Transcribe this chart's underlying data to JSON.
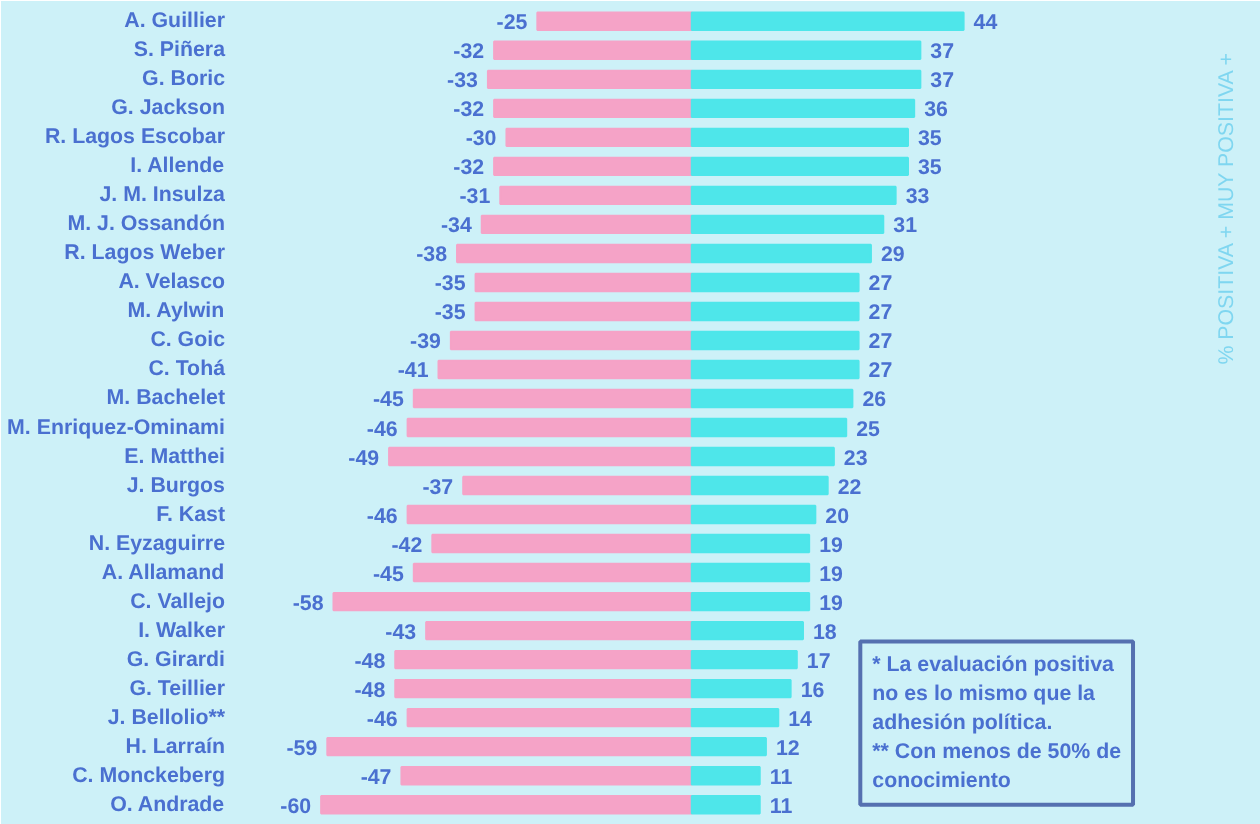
{
  "chart_data": {
    "type": "bar",
    "orientation": "horizontal",
    "categories": [
      "A. Guillier",
      "S. Piñera",
      "G. Boric",
      "G. Jackson",
      "R. Lagos Escobar",
      "I. Allende",
      "J. M. Insulza",
      "M. J. Ossandón",
      "R. Lagos Weber",
      "A. Velasco",
      "M. Aylwin",
      "C. Goic",
      "C. Tohá",
      "M. Bachelet",
      "M. Enriquez-Ominami",
      "E. Matthei",
      "J. Burgos",
      "F. Kast",
      "N. Eyzaguirre",
      "A. Allamand",
      "C. Vallejo",
      "I. Walker",
      "G. Girardi",
      "G. Teillier",
      "J. Bellolio**",
      "H. Larraín",
      "C. Monckeberg",
      "O. Andrade"
    ],
    "series": [
      {
        "color": "#f5a3c7",
        "values": [
          -25,
          -32,
          -33,
          -32,
          -30,
          -32,
          -31,
          -34,
          -38,
          -35,
          -35,
          -39,
          -41,
          -45,
          -46,
          -49,
          -37,
          -46,
          -42,
          -45,
          -58,
          -43,
          -48,
          -48,
          -46,
          -59,
          -47,
          -60
        ]
      },
      {
        "color": "#4ee6ea",
        "values": [
          44,
          37,
          37,
          36,
          35,
          35,
          33,
          31,
          29,
          27,
          27,
          27,
          27,
          26,
          25,
          23,
          22,
          20,
          19,
          19,
          19,
          18,
          17,
          16,
          14,
          12,
          11,
          11
        ]
      }
    ],
    "data_labels": true,
    "stacked": true,
    "annotations": [
      "% POSITIVA + MUY POSITIVA +",
      "* La evaluación positiva no es lo mismo que la adhesión política.",
      "** Con menos de 50% de conocimiento"
    ]
  }
}
